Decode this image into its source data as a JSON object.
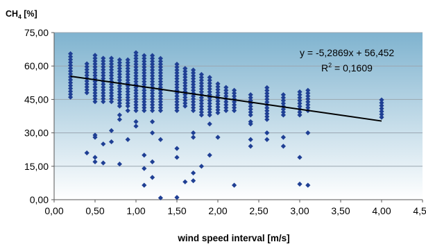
{
  "chart_data": {
    "type": "scatter",
    "ylabel_main": "CH",
    "ylabel_sub": "4",
    "ylabel_unit": " [%]",
    "xlabel": "wind speed interval [m/s]",
    "xlim": [
      0,
      4.5
    ],
    "ylim": [
      0,
      75
    ],
    "x_ticks": [
      0,
      0.5,
      1,
      1.5,
      2,
      2.5,
      3,
      3.5,
      4,
      4.5
    ],
    "x_tick_labels": [
      "0,00",
      "0,50",
      "1,00",
      "1,50",
      "2,00",
      "2,50",
      "3,00",
      "3,50",
      "4,00",
      "4,50"
    ],
    "y_ticks": [
      0,
      15,
      30,
      45,
      60,
      75
    ],
    "y_tick_labels": [
      "0,00",
      "15,00",
      "30,00",
      "45,00",
      "60,00",
      "75,00"
    ],
    "grid": "horizontal",
    "equation_label": "y = -5,2869x + 56,452",
    "r2_prefix": "R",
    "r2_exp": "2",
    "r2_value": " = 0,1609",
    "trendline": {
      "slope": -5.2869,
      "intercept": 56.452,
      "x_start": 0.2,
      "x_end": 4.0
    },
    "colors": {
      "points": "#1f3f94",
      "trendline": "#000000",
      "plot_top": "#7fb3cf",
      "plot_bottom": "#ffffff",
      "gridline": "#9aa6b0"
    },
    "column_ranges": [
      {
        "x": 0.2,
        "min": 46,
        "max": 66
      },
      {
        "x": 0.4,
        "min": 48,
        "max": 62
      },
      {
        "x": 0.5,
        "min": 44,
        "max": 66
      },
      {
        "x": 0.6,
        "min": 44,
        "max": 64
      },
      {
        "x": 0.7,
        "min": 44,
        "max": 64
      },
      {
        "x": 0.8,
        "min": 42,
        "max": 64
      },
      {
        "x": 0.9,
        "min": 42,
        "max": 64
      },
      {
        "x": 1.0,
        "min": 40,
        "max": 66
      },
      {
        "x": 1.1,
        "min": 40,
        "max": 65
      },
      {
        "x": 1.2,
        "min": 40,
        "max": 65
      },
      {
        "x": 1.3,
        "min": 40,
        "max": 64
      },
      {
        "x": 1.5,
        "min": 40,
        "max": 62
      },
      {
        "x": 1.6,
        "min": 42,
        "max": 60
      },
      {
        "x": 1.7,
        "min": 40,
        "max": 59
      },
      {
        "x": 1.8,
        "min": 38,
        "max": 57
      },
      {
        "x": 1.9,
        "min": 38,
        "max": 55
      },
      {
        "x": 2.0,
        "min": 39,
        "max": 53
      },
      {
        "x": 2.1,
        "min": 40,
        "max": 51
      },
      {
        "x": 2.2,
        "min": 40,
        "max": 50
      },
      {
        "x": 2.4,
        "min": 38,
        "max": 48
      },
      {
        "x": 2.6,
        "min": 36,
        "max": 51
      },
      {
        "x": 2.8,
        "min": 38,
        "max": 48
      },
      {
        "x": 3.0,
        "min": 38,
        "max": 49
      },
      {
        "x": 3.1,
        "min": 40,
        "max": 50
      },
      {
        "x": 4.0,
        "min": 37,
        "max": 45
      }
    ],
    "points": [
      {
        "x": 0.4,
        "y": 21
      },
      {
        "x": 0.5,
        "y": 19
      },
      {
        "x": 0.5,
        "y": 17
      },
      {
        "x": 0.5,
        "y": 28
      },
      {
        "x": 0.5,
        "y": 29
      },
      {
        "x": 0.6,
        "y": 25
      },
      {
        "x": 0.6,
        "y": 16.5
      },
      {
        "x": 0.7,
        "y": 31
      },
      {
        "x": 0.7,
        "y": 26
      },
      {
        "x": 0.8,
        "y": 16
      },
      {
        "x": 0.8,
        "y": 36
      },
      {
        "x": 0.8,
        "y": 38
      },
      {
        "x": 0.9,
        "y": 40
      },
      {
        "x": 0.9,
        "y": 27
      },
      {
        "x": 1.0,
        "y": 35
      },
      {
        "x": 1.0,
        "y": 33
      },
      {
        "x": 1.1,
        "y": 6.5
      },
      {
        "x": 1.1,
        "y": 14
      },
      {
        "x": 1.1,
        "y": 20
      },
      {
        "x": 1.2,
        "y": 10
      },
      {
        "x": 1.2,
        "y": 17
      },
      {
        "x": 1.2,
        "y": 30
      },
      {
        "x": 1.2,
        "y": 35
      },
      {
        "x": 1.3,
        "y": 0.8
      },
      {
        "x": 1.3,
        "y": 27
      },
      {
        "x": 1.5,
        "y": 1
      },
      {
        "x": 1.5,
        "y": 23
      },
      {
        "x": 1.5,
        "y": 19
      },
      {
        "x": 1.6,
        "y": 8
      },
      {
        "x": 1.7,
        "y": 8.5
      },
      {
        "x": 1.7,
        "y": 12
      },
      {
        "x": 1.7,
        "y": 28
      },
      {
        "x": 1.7,
        "y": 30
      },
      {
        "x": 1.8,
        "y": 15
      },
      {
        "x": 1.9,
        "y": 20
      },
      {
        "x": 1.9,
        "y": 34
      },
      {
        "x": 2.0,
        "y": 28
      },
      {
        "x": 2.2,
        "y": 6.5
      },
      {
        "x": 2.4,
        "y": 24
      },
      {
        "x": 2.4,
        "y": 27
      },
      {
        "x": 2.4,
        "y": 34
      },
      {
        "x": 2.4,
        "y": 35
      },
      {
        "x": 2.6,
        "y": 27
      },
      {
        "x": 2.6,
        "y": 30
      },
      {
        "x": 2.8,
        "y": 24
      },
      {
        "x": 2.8,
        "y": 28
      },
      {
        "x": 3.0,
        "y": 19
      },
      {
        "x": 3.0,
        "y": 7
      },
      {
        "x": 3.1,
        "y": 6.5
      },
      {
        "x": 3.1,
        "y": 30
      }
    ]
  }
}
